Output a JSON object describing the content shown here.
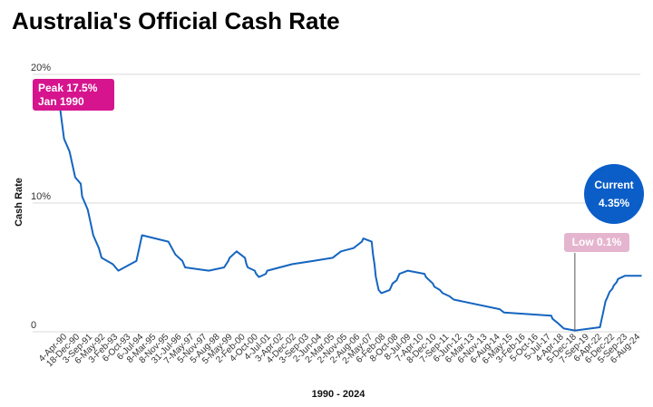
{
  "title": "Australia's Official Cash Rate",
  "chart_data": {
    "type": "line",
    "title": "Australia's Official Cash Rate",
    "xlabel": "1990 - 2024",
    "ylabel": "Cash Rate",
    "ylim": [
      0,
      20
    ],
    "y_ticks": [
      "0",
      "10%",
      "20%"
    ],
    "x_tick_labels": [
      "4-Apr-90",
      "18-Dec-90",
      "3-Sep-91",
      "6-May-92",
      "3-Feb-93",
      "6-Oct-93",
      "6-Jul-94",
      "8-Mar-95",
      "8-Nov-95",
      "31-Jul-96",
      "7-May-97",
      "5-Nov-97",
      "5-Aug-98",
      "5-May-99",
      "2-Feb-00",
      "4-Oct-00",
      "4-Jul-01",
      "3-Apr-02",
      "4-Dec-02",
      "3-Sep-03",
      "2-Jun-04",
      "2-Mar-05",
      "2-Nov-05",
      "2-Aug-06",
      "2-May-07",
      "6-Feb-08",
      "8-Oct-08",
      "8-Jul-09",
      "7-Apr-10",
      "8-Dec-10",
      "7-Sep-11",
      "6-Jun-12",
      "6-Mar-13",
      "6-Nov-13",
      "6-Aug-14",
      "6-May-15",
      "3-Feb-16",
      "5-Oct-16",
      "5-Jul-17",
      "4-Apr-18",
      "5-Dec-18",
      "7-Sep-19",
      "6-Apr-22",
      "6-Dec-22",
      "5-Sep-23",
      "6-Aug-24"
    ],
    "grid": true,
    "series": [
      {
        "color": "#1565c0",
        "x": [
          "1990-01",
          "1990-04",
          "1990-08",
          "1990-10",
          "1990-12",
          "1991-04",
          "1991-05",
          "1991-09",
          "1991-11",
          "1992-01",
          "1992-05",
          "1992-07",
          "1993-03",
          "1993-07",
          "1994-08",
          "1994-10",
          "1994-12",
          "1996-07",
          "1996-12",
          "1997-05",
          "1997-07",
          "1998-12",
          "1999-11",
          "2000-02",
          "2000-03",
          "2000-08",
          "2001-02",
          "2001-03",
          "2001-04",
          "2001-09",
          "2001-10",
          "2001-12",
          "2002-05",
          "2002-06",
          "2003-12",
          "2005-03",
          "2006-05",
          "2006-08",
          "2006-11",
          "2007-08",
          "2007-11",
          "2008-02",
          "2008-03",
          "2008-09",
          "2008-10",
          "2008-11",
          "2008-12",
          "2009-02",
          "2009-04",
          "2009-10",
          "2009-11",
          "2009-12",
          "2010-03",
          "2010-04",
          "2010-05",
          "2010-11",
          "2011-11",
          "2011-12",
          "2012-05",
          "2012-06",
          "2012-10",
          "2012-12",
          "2013-05",
          "2013-08",
          "2016-05",
          "2016-08",
          "2019-06",
          "2019-07",
          "2019-10",
          "2020-03",
          "2020-11",
          "2022-05",
          "2022-06",
          "2022-07",
          "2022-08",
          "2022-09",
          "2022-10",
          "2022-11",
          "2022-12",
          "2023-02",
          "2023-03",
          "2023-05",
          "2023-06",
          "2023-11",
          "2024-11"
        ],
        "values": [
          17.5,
          15,
          14,
          13,
          12,
          11.5,
          10.5,
          9.5,
          8.5,
          7.5,
          6.5,
          5.75,
          5.25,
          4.75,
          5.5,
          6.5,
          7.5,
          7,
          6,
          5.5,
          5,
          4.75,
          5,
          5.5,
          5.75,
          6.25,
          5.75,
          5.25,
          5,
          4.75,
          4.5,
          4.25,
          4.5,
          4.75,
          5.25,
          5.5,
          5.75,
          6,
          6.25,
          6.5,
          6.75,
          7,
          7.25,
          7,
          6,
          5.25,
          4.25,
          3.25,
          3,
          3.25,
          3.5,
          3.75,
          4,
          4.25,
          4.5,
          4.75,
          4.5,
          4.25,
          3.75,
          3.5,
          3.25,
          3,
          2.75,
          2.5,
          1.75,
          1.5,
          1.25,
          1,
          0.75,
          0.25,
          0.1,
          0.35,
          0.85,
          1.35,
          1.85,
          2.35,
          2.6,
          2.85,
          3.1,
          3.35,
          3.6,
          3.85,
          4.1,
          4.35,
          4.35
        ]
      }
    ],
    "annotations": {
      "peak": [
        "Peak 17.5%",
        "Jan 1990"
      ],
      "current": [
        "Current",
        "4.35%"
      ],
      "low": "Low 0.1%"
    }
  }
}
